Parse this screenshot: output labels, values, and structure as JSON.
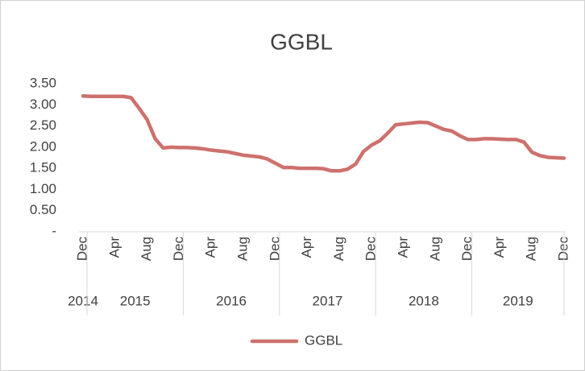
{
  "chart_data": {
    "type": "line",
    "title": "GGBL",
    "categories": [
      "Dec",
      null,
      null,
      null,
      "Apr",
      null,
      null,
      null,
      "Aug",
      null,
      null,
      null,
      "Dec",
      null,
      null,
      null,
      "Apr",
      null,
      null,
      null,
      "Aug",
      null,
      null,
      null,
      "Dec",
      null,
      null,
      null,
      "Apr",
      null,
      null,
      null,
      "Aug",
      null,
      null,
      null,
      "Dec",
      null,
      null,
      null,
      "Apr",
      null,
      null,
      null,
      "Aug",
      null,
      null,
      null,
      "Dec",
      null,
      null,
      null,
      "Apr",
      null,
      null,
      null,
      "Aug",
      null,
      null,
      null,
      "Dec"
    ],
    "years": [
      "2014",
      "2015",
      "2016",
      "2017",
      "2018",
      "2019"
    ],
    "series": [
      {
        "name": "GGBL",
        "color": "#cd716d",
        "values": [
          3.21,
          3.2,
          3.2,
          3.2,
          3.2,
          3.2,
          3.17,
          2.92,
          2.65,
          2.2,
          1.98,
          2.0,
          1.99,
          1.99,
          1.98,
          1.96,
          1.93,
          1.91,
          1.89,
          1.85,
          1.81,
          1.79,
          1.77,
          1.72,
          1.62,
          1.52,
          1.52,
          1.5,
          1.5,
          1.5,
          1.49,
          1.44,
          1.44,
          1.48,
          1.6,
          1.9,
          2.05,
          2.15,
          2.33,
          2.53,
          2.55,
          2.57,
          2.59,
          2.58,
          2.5,
          2.42,
          2.38,
          2.27,
          2.18,
          2.18,
          2.2,
          2.2,
          2.19,
          2.18,
          2.18,
          2.12,
          1.88,
          1.8,
          1.76,
          1.75,
          1.74
        ]
      }
    ],
    "ylim": [
      0,
      3.5
    ],
    "yticks": [
      {
        "value": 0,
        "label": "-"
      },
      {
        "value": 0.5,
        "label": "0.50"
      },
      {
        "value": 1,
        "label": "1.00"
      },
      {
        "value": 1.5,
        "label": "1.50"
      },
      {
        "value": 2,
        "label": "2.00"
      },
      {
        "value": 2.5,
        "label": "2.50"
      },
      {
        "value": 3,
        "label": "3.00"
      },
      {
        "value": 3.5,
        "label": "3.50"
      }
    ],
    "grid": false,
    "legend": "bottom"
  }
}
